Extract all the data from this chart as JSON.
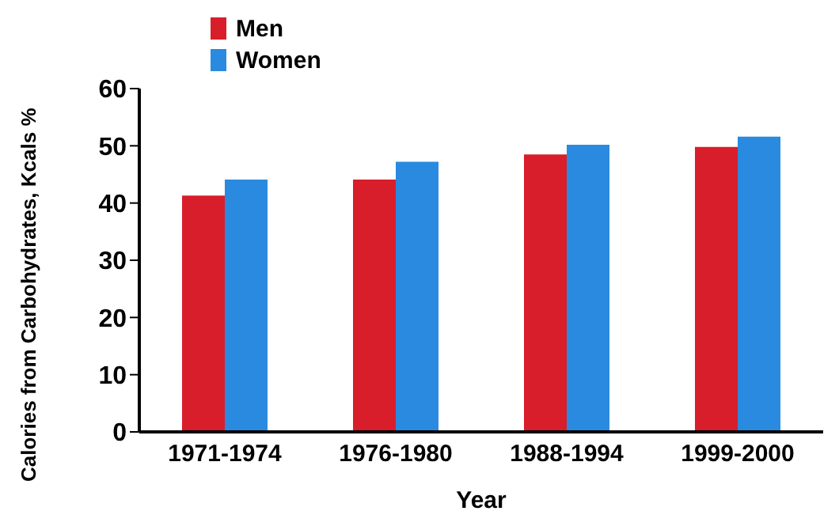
{
  "chart_data": {
    "type": "bar",
    "xlabel": "Year",
    "ylabel": "Calories from Carbohydrates, Kcals %",
    "categories": [
      "1971-1974",
      "1976-1980",
      "1988-1994",
      "1999-2000"
    ],
    "series": [
      {
        "name": "Men",
        "color": "#d81e2a",
        "values": [
          41.3,
          44.1,
          48.5,
          49.8
        ]
      },
      {
        "name": "Women",
        "color": "#2a8ae0",
        "values": [
          44.1,
          47.2,
          50.2,
          51.6
        ]
      }
    ],
    "ylim": [
      0,
      60
    ],
    "yticks": [
      0,
      10,
      20,
      30,
      40,
      50,
      60
    ],
    "grid": false,
    "legend": "top left"
  }
}
